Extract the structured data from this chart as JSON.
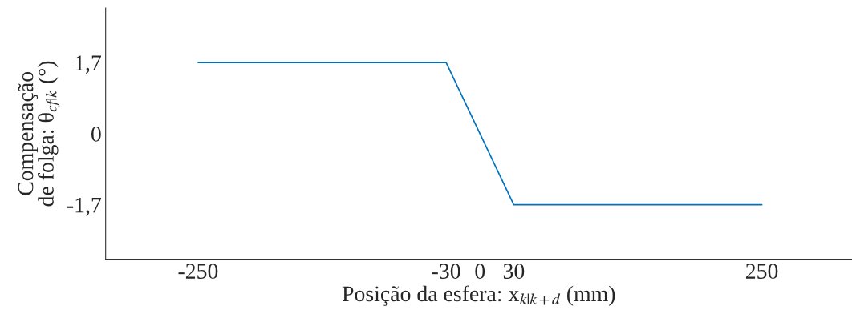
{
  "chart_data": {
    "type": "line",
    "xlabel": "Posição da esfera: x$_{k|k+d}$ (mm)",
    "ylabel": "Compensação\nde folga: θ$_{cf|k}$ (°)",
    "x": [
      -250,
      -30,
      30,
      250
    ],
    "series": [
      {
        "color": "#0072bd",
        "values": [
          1.7,
          1.7,
          -1.7,
          -1.7
        ]
      }
    ],
    "xlim": [
      -332,
      330
    ],
    "ylim": [
      -3,
      3
    ],
    "xticks": [
      -250,
      -30,
      0,
      30,
      250
    ],
    "yticks": [
      {
        "value": -1.7,
        "label": "-1,7"
      },
      0,
      {
        "value": 1.7,
        "label": "1,7"
      }
    ],
    "grid": false
  }
}
